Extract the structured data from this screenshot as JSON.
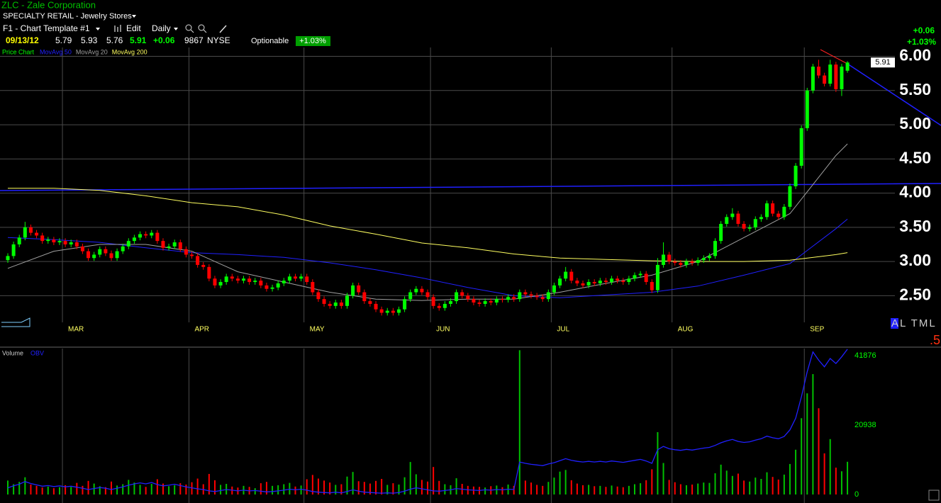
{
  "header": {
    "title": "ZLC - Zale Corporation",
    "industry": "SPECIALTY RETAIL - Jewelry Stores",
    "template": "F1 - Chart Template #1",
    "edit": "Edit",
    "interval": "Daily",
    "date": "09/13/12",
    "exchange": "NYSE",
    "optionable": "Optionable",
    "change": "+0.06",
    "change_pct": "+1.03%",
    "tools": "AL TML",
    "corner": ".5"
  },
  "chart_data": {
    "type": "candlestick",
    "price_label": "Price Chart",
    "volume_name": "Volume",
    "obv_name": "OBV",
    "up_color": "#00ff00",
    "down_color": "#ff0000",
    "volume_color": "#00c000",
    "obv_color": "#2020ff",
    "grid": true,
    "categories": [
      null,
      null,
      null,
      null,
      null,
      null,
      null,
      null,
      null,
      null,
      "MAR",
      null,
      null,
      null,
      null,
      null,
      null,
      null,
      null,
      null,
      null,
      null,
      null,
      null,
      null,
      null,
      null,
      null,
      null,
      null,
      null,
      null,
      "APR",
      null,
      null,
      null,
      null,
      null,
      null,
      null,
      null,
      null,
      null,
      null,
      null,
      null,
      null,
      null,
      null,
      null,
      null,
      null,
      "MAY",
      null,
      null,
      null,
      null,
      null,
      null,
      null,
      null,
      null,
      null,
      null,
      null,
      null,
      null,
      null,
      null,
      null,
      null,
      null,
      null,
      null,
      "JUN",
      null,
      null,
      null,
      null,
      null,
      null,
      null,
      null,
      null,
      null,
      null,
      null,
      null,
      null,
      null,
      null,
      null,
      null,
      null,
      null,
      "JUL",
      null,
      null,
      null,
      null,
      null,
      null,
      null,
      null,
      null,
      null,
      null,
      null,
      null,
      null,
      null,
      null,
      null,
      null,
      null,
      null,
      "AUG",
      null,
      null,
      null,
      null,
      null,
      null,
      null,
      null,
      null,
      null,
      null,
      null,
      null,
      null,
      null,
      null,
      null,
      null,
      null,
      null,
      null,
      null,
      "SEP",
      null,
      null,
      null,
      null,
      null,
      null,
      null
    ],
    "open": [
      3.02,
      3.08,
      3.25,
      3.35,
      3.5,
      3.42,
      3.38,
      3.3,
      3.32,
      3.28,
      3.3,
      3.25,
      3.28,
      3.22,
      3.15,
      3.05,
      3.1,
      3.18,
      3.12,
      3.05,
      3.15,
      3.22,
      3.3,
      3.35,
      3.4,
      3.38,
      3.42,
      3.3,
      3.2,
      3.22,
      3.28,
      3.18,
      3.1,
      3.08,
      2.95,
      2.92,
      2.75,
      2.65,
      2.7,
      2.78,
      2.75,
      2.72,
      2.75,
      2.7,
      2.72,
      2.65,
      2.6,
      2.62,
      2.68,
      2.72,
      2.78,
      2.75,
      2.78,
      2.7,
      2.55,
      2.45,
      2.38,
      2.35,
      2.4,
      2.35,
      2.5,
      2.65,
      2.55,
      2.42,
      2.38,
      2.3,
      2.25,
      2.28,
      2.25,
      2.3,
      2.45,
      2.55,
      2.6,
      2.55,
      2.48,
      2.35,
      2.32,
      2.38,
      2.42,
      2.55,
      2.5,
      2.45,
      2.4,
      2.38,
      2.42,
      2.4,
      2.45,
      2.44,
      2.48,
      2.45,
      2.55,
      2.52,
      2.5,
      2.48,
      2.45,
      2.55,
      2.65,
      2.75,
      2.85,
      2.72,
      2.68,
      2.65,
      2.7,
      2.68,
      2.72,
      2.7,
      2.75,
      2.72,
      2.7,
      2.75,
      2.8,
      2.82,
      2.7,
      2.58,
      2.95,
      3.1,
      3.0,
      2.98,
      2.95,
      3.0,
      2.98,
      3.02,
      3.05,
      3.08,
      3.3,
      3.55,
      3.65,
      3.7,
      3.55,
      3.48,
      3.5,
      3.62,
      3.65,
      3.85,
      3.7,
      3.65,
      3.8,
      4.1,
      4.4,
      4.95,
      5.5,
      5.85,
      5.72,
      5.6,
      5.88,
      5.52,
      5.79
    ],
    "high": [
      3.12,
      3.29,
      3.39,
      3.58,
      3.54,
      3.46,
      3.42,
      3.36,
      3.36,
      3.34,
      3.34,
      3.32,
      3.32,
      3.26,
      3.19,
      3.14,
      3.22,
      3.22,
      3.16,
      3.19,
      3.26,
      3.34,
      3.39,
      3.44,
      3.44,
      3.46,
      3.46,
      3.34,
      3.26,
      3.32,
      3.32,
      3.22,
      3.14,
      3.12,
      2.99,
      2.96,
      2.79,
      2.74,
      2.82,
      2.82,
      2.79,
      2.79,
      2.79,
      2.76,
      2.76,
      2.69,
      2.66,
      2.72,
      2.76,
      2.82,
      2.82,
      2.82,
      2.82,
      2.74,
      2.59,
      2.49,
      2.42,
      2.44,
      2.44,
      2.54,
      2.69,
      2.69,
      2.59,
      2.46,
      2.42,
      2.34,
      2.32,
      2.32,
      2.34,
      2.49,
      2.59,
      2.64,
      2.64,
      2.59,
      2.52,
      2.39,
      2.42,
      2.46,
      2.59,
      2.59,
      2.54,
      2.49,
      2.44,
      2.46,
      2.46,
      2.49,
      2.49,
      2.52,
      2.52,
      2.59,
      2.59,
      2.56,
      2.54,
      2.52,
      2.59,
      2.69,
      2.79,
      2.92,
      2.89,
      2.76,
      2.72,
      2.74,
      2.74,
      2.76,
      2.76,
      2.79,
      2.79,
      2.76,
      2.79,
      2.84,
      2.86,
      2.86,
      2.74,
      3.05,
      3.28,
      3.14,
      3.04,
      3.02,
      3.04,
      3.04,
      3.06,
      3.09,
      3.12,
      3.34,
      3.59,
      3.69,
      3.78,
      3.74,
      3.59,
      3.54,
      3.66,
      3.69,
      3.89,
      3.89,
      3.74,
      3.84,
      4.14,
      4.44,
      4.99,
      5.54,
      5.89,
      5.95,
      5.76,
      5.95,
      5.92,
      5.89,
      5.93
    ],
    "low": [
      2.98,
      3.04,
      3.21,
      3.31,
      3.38,
      3.34,
      3.26,
      3.26,
      3.24,
      3.24,
      3.21,
      3.21,
      3.18,
      3.11,
      3.01,
      3.01,
      3.06,
      3.08,
      3.01,
      3.01,
      3.11,
      3.18,
      3.26,
      3.31,
      3.34,
      3.34,
      3.26,
      3.16,
      3.16,
      3.18,
      3.14,
      3.06,
      3.04,
      2.91,
      2.88,
      2.71,
      2.61,
      2.61,
      2.66,
      2.71,
      2.68,
      2.68,
      2.66,
      2.66,
      2.61,
      2.56,
      2.56,
      2.58,
      2.64,
      2.68,
      2.71,
      2.71,
      2.66,
      2.51,
      2.41,
      2.34,
      2.31,
      2.31,
      2.31,
      2.31,
      2.46,
      2.51,
      2.38,
      2.34,
      2.26,
      2.21,
      2.21,
      2.21,
      2.21,
      2.26,
      2.41,
      2.51,
      2.51,
      2.44,
      2.31,
      2.28,
      2.28,
      2.34,
      2.38,
      2.46,
      2.41,
      2.36,
      2.34,
      2.34,
      2.36,
      2.36,
      2.4,
      2.4,
      2.41,
      2.41,
      2.48,
      2.46,
      2.44,
      2.41,
      2.41,
      2.51,
      2.61,
      2.71,
      2.68,
      2.64,
      2.61,
      2.61,
      2.64,
      2.64,
      2.66,
      2.66,
      2.68,
      2.66,
      2.66,
      2.71,
      2.76,
      2.66,
      2.54,
      2.54,
      2.91,
      2.96,
      2.94,
      2.91,
      2.91,
      2.94,
      2.94,
      2.98,
      3.01,
      3.04,
      3.26,
      3.51,
      3.61,
      3.51,
      3.44,
      3.44,
      3.46,
      3.58,
      3.61,
      3.66,
      3.61,
      3.61,
      3.76,
      4.06,
      4.36,
      4.91,
      5.46,
      5.68,
      5.56,
      5.56,
      5.48,
      5.42,
      5.76
    ],
    "close": [
      3.08,
      3.25,
      3.35,
      3.5,
      3.42,
      3.38,
      3.3,
      3.32,
      3.28,
      3.3,
      3.25,
      3.28,
      3.22,
      3.15,
      3.05,
      3.1,
      3.18,
      3.12,
      3.05,
      3.15,
      3.22,
      3.3,
      3.35,
      3.4,
      3.38,
      3.42,
      3.3,
      3.2,
      3.22,
      3.28,
      3.18,
      3.1,
      3.08,
      2.95,
      2.92,
      2.75,
      2.65,
      2.7,
      2.78,
      2.75,
      2.72,
      2.75,
      2.7,
      2.72,
      2.65,
      2.6,
      2.62,
      2.68,
      2.72,
      2.78,
      2.75,
      2.78,
      2.7,
      2.55,
      2.45,
      2.38,
      2.35,
      2.4,
      2.35,
      2.5,
      2.65,
      2.55,
      2.42,
      2.38,
      2.3,
      2.25,
      2.28,
      2.25,
      2.3,
      2.45,
      2.55,
      2.6,
      2.55,
      2.48,
      2.35,
      2.32,
      2.38,
      2.42,
      2.55,
      2.5,
      2.45,
      2.4,
      2.38,
      2.42,
      2.4,
      2.45,
      2.44,
      2.48,
      2.45,
      2.55,
      2.52,
      2.5,
      2.48,
      2.45,
      2.55,
      2.65,
      2.75,
      2.85,
      2.72,
      2.68,
      2.65,
      2.7,
      2.68,
      2.72,
      2.7,
      2.75,
      2.72,
      2.7,
      2.75,
      2.8,
      2.82,
      2.7,
      2.58,
      2.95,
      3.1,
      3.0,
      2.98,
      2.95,
      3.0,
      2.98,
      3.02,
      3.05,
      3.08,
      3.3,
      3.55,
      3.65,
      3.7,
      3.55,
      3.48,
      3.5,
      3.62,
      3.65,
      3.85,
      3.7,
      3.65,
      3.8,
      4.1,
      4.4,
      4.95,
      5.5,
      5.85,
      5.72,
      5.6,
      5.88,
      5.52,
      5.85,
      5.91
    ],
    "volume": [
      4200,
      3100,
      3800,
      5200,
      3000,
      2600,
      2100,
      2400,
      1900,
      2200,
      2800,
      2300,
      3500,
      2600,
      4100,
      3300,
      2500,
      2200,
      3900,
      2700,
      3100,
      4400,
      3600,
      2900,
      2300,
      3200,
      4600,
      3300,
      2500,
      2800,
      3400,
      3000,
      3700,
      4800,
      3100,
      6200,
      4300,
      2900,
      3200,
      2400,
      2100,
      2600,
      2300,
      1900,
      3400,
      3800,
      2600,
      2800,
      3100,
      3500,
      2400,
      2700,
      4600,
      5900,
      4800,
      4200,
      3600,
      2900,
      3100,
      5400,
      6800,
      4000,
      3800,
      3300,
      4100,
      4700,
      2900,
      3400,
      3000,
      5200,
      9800,
      6100,
      4400,
      3900,
      8300,
      4100,
      3100,
      2800,
      4900,
      3200,
      2600,
      2400,
      2300,
      2100,
      2500,
      2700,
      2200,
      3000,
      2600,
      43500,
      4200,
      3600,
      2900,
      2600,
      3800,
      5100,
      6900,
      7400,
      4300,
      3300,
      2800,
      2900,
      2500,
      2600,
      2300,
      2700,
      2400,
      2200,
      2600,
      3100,
      3400,
      4300,
      7600,
      18800,
      9500,
      4400,
      3700,
      3100,
      2800,
      3000,
      3300,
      3600,
      3500,
      6400,
      9000,
      7200,
      5600,
      6300,
      4200,
      3900,
      5100,
      4700,
      6700,
      5300,
      4500,
      6000,
      9200,
      13500,
      23000,
      30500,
      36300,
      26000,
      12400,
      16700,
      8100,
      7000,
      9867
    ],
    "obv": [
      2000,
      2600,
      3100,
      3900,
      3300,
      2900,
      2500,
      2700,
      2400,
      2600,
      2300,
      2500,
      2200,
      1900,
      1500,
      1800,
      2100,
      1900,
      1500,
      1900,
      2300,
      2800,
      3200,
      3500,
      3200,
      3600,
      3000,
      2600,
      2800,
      3100,
      2700,
      2300,
      2000,
      1700,
      1500,
      1100,
      900,
      1200,
      1500,
      1300,
      1100,
      1300,
      1100,
      1200,
      1000,
      800,
      900,
      1100,
      1300,
      1600,
      1400,
      1600,
      1300,
      900,
      700,
      600,
      500,
      700,
      500,
      900,
      1400,
      1000,
      700,
      600,
      500,
      400,
      500,
      400,
      600,
      1000,
      1600,
      2000,
      1700,
      1400,
      1100,
      1000,
      1200,
      1400,
      1800,
      1600,
      1400,
      1300,
      1200,
      1400,
      1300,
      1500,
      1400,
      1600,
      1500,
      9800,
      9400,
      9100,
      8900,
      8700,
      9200,
      9600,
      10200,
      10800,
      10300,
      10000,
      9800,
      10000,
      9800,
      10000,
      9800,
      10100,
      9900,
      9700,
      10000,
      10300,
      10600,
      10100,
      9400,
      13500,
      14500,
      13800,
      13500,
      13300,
      13600,
      13400,
      13700,
      14000,
      14200,
      14800,
      15600,
      16200,
      16600,
      16000,
      15700,
      15900,
      16400,
      16800,
      17600,
      17100,
      16800,
      17500,
      19500,
      23000,
      29500,
      37000,
      43000,
      40500,
      38500,
      41000,
      39500,
      41500,
      43800
    ],
    "moving_averages": [
      {
        "name": "MovAvg 50",
        "color": "#2020ff",
        "x": [
          0,
          8,
          16,
          24,
          32,
          40,
          48,
          56,
          64,
          72,
          80,
          88,
          96,
          104,
          112,
          120,
          128,
          136,
          144,
          146
        ],
        "values": [
          3.35,
          3.32,
          3.28,
          3.2,
          3.13,
          3.1,
          3.06,
          2.98,
          2.88,
          2.76,
          2.62,
          2.5,
          2.47,
          2.51,
          2.55,
          2.64,
          2.8,
          2.97,
          3.48,
          3.62
        ]
      },
      {
        "name": "MovAvg 20",
        "color": "#a0a0a0",
        "x": [
          0,
          8,
          16,
          24,
          32,
          40,
          48,
          56,
          64,
          72,
          80,
          88,
          96,
          104,
          112,
          120,
          128,
          136,
          144,
          146
        ],
        "values": [
          2.9,
          3.15,
          3.25,
          3.25,
          3.15,
          2.85,
          2.7,
          2.55,
          2.45,
          2.43,
          2.45,
          2.45,
          2.55,
          2.68,
          2.8,
          3.0,
          3.35,
          3.7,
          4.55,
          4.72
        ]
      },
      {
        "name": "MovAvg 200",
        "color": "#ffff60",
        "x": [
          0,
          8,
          16,
          24,
          32,
          40,
          48,
          56,
          64,
          72,
          80,
          88,
          96,
          104,
          112,
          120,
          128,
          136,
          144,
          146
        ],
        "values": [
          4.07,
          4.07,
          4.04,
          3.96,
          3.86,
          3.8,
          3.68,
          3.52,
          3.4,
          3.27,
          3.2,
          3.11,
          3.05,
          3.03,
          3.01,
          3.0,
          3.0,
          3.02,
          3.1,
          3.13
        ]
      }
    ],
    "ylim": [
      2.11,
      6.13
    ],
    "yticks": [
      {
        "value": 2.5,
        "label": "2.50"
      },
      {
        "value": 3,
        "label": "3.00"
      },
      {
        "value": 3.5,
        "label": "3.50"
      },
      {
        "value": 4,
        "label": "4.00"
      },
      {
        "value": 4.5,
        "label": "4.50"
      },
      {
        "value": 5,
        "label": "5.00"
      },
      {
        "value": 5.5,
        "label": "5.50"
      },
      {
        "value": 6,
        "label": "6.00"
      }
    ],
    "volume_ylim": [
      0,
      44000
    ],
    "volume_yticks": [
      0,
      20938,
      41876
    ]
  }
}
